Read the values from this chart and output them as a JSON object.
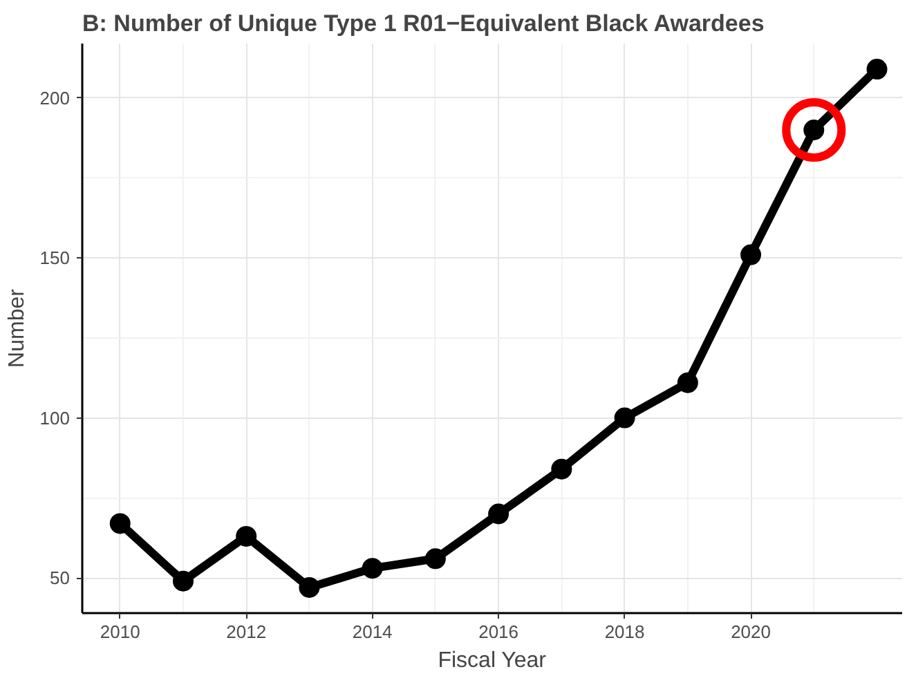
{
  "chart_data": {
    "type": "line",
    "title": "B: Number of Unique Type 1 R01−Equivalent Black Awardees",
    "xlabel": "Fiscal Year",
    "ylabel": "Number",
    "x": [
      2010,
      2011,
      2012,
      2013,
      2014,
      2015,
      2016,
      2017,
      2018,
      2019,
      2020,
      2021,
      2022
    ],
    "series": [
      {
        "color": "#000000",
        "values": [
          67,
          49,
          63,
          47,
          53,
          56,
          70,
          84,
          100,
          111,
          151,
          190,
          209
        ]
      },
      {
        "type": "scatter",
        "color": "#ff0000",
        "values": [
          null,
          null,
          null,
          null,
          null,
          null,
          null,
          null,
          null,
          null,
          null,
          190,
          null
        ]
      }
    ],
    "xlim": [
      2009.4,
      2022.4
    ],
    "ylim": [
      39,
      217
    ],
    "xticks": [
      2010,
      2012,
      2014,
      2016,
      2018,
      2020
    ],
    "yticks": [
      50,
      100,
      150,
      200
    ],
    "grid": true,
    "marker": "circle",
    "line_style": "solid"
  }
}
